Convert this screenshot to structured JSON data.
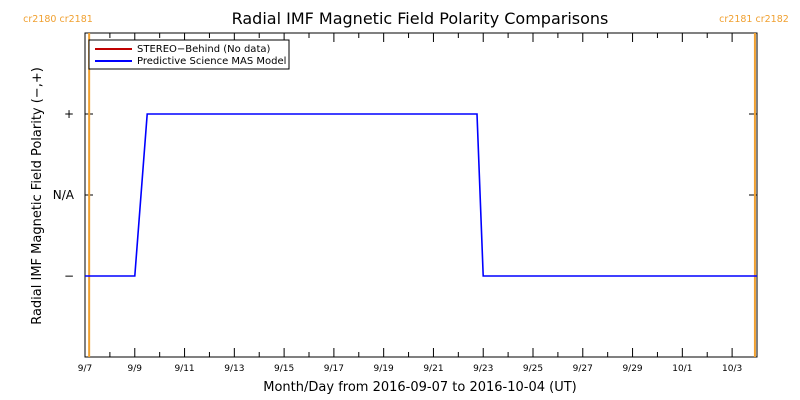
{
  "chart_data": {
    "type": "line",
    "title": "Radial IMF Magnetic Field Polarity Comparisons",
    "xlabel": "Month/Day from 2016-09-07 to 2016-10-04 (UT)",
    "ylabel": "Radial IMF Magnetic Field Polarity (−,+)",
    "x_start": "2016-09-07",
    "x_end": "2016-10-04",
    "x_ticks": [
      {
        "date": "2016-09-07",
        "label": "9/7"
      },
      {
        "date": "2016-09-09",
        "label": "9/9"
      },
      {
        "date": "2016-09-11",
        "label": "9/11"
      },
      {
        "date": "2016-09-13",
        "label": "9/13"
      },
      {
        "date": "2016-09-15",
        "label": "9/15"
      },
      {
        "date": "2016-09-17",
        "label": "9/17"
      },
      {
        "date": "2016-09-19",
        "label": "9/19"
      },
      {
        "date": "2016-09-21",
        "label": "9/21"
      },
      {
        "date": "2016-09-23",
        "label": "9/23"
      },
      {
        "date": "2016-09-25",
        "label": "9/25"
      },
      {
        "date": "2016-09-27",
        "label": "9/27"
      },
      {
        "date": "2016-09-29",
        "label": "9/29"
      },
      {
        "date": "2016-10-01",
        "label": "10/1"
      },
      {
        "date": "2016-10-03",
        "label": "10/3"
      }
    ],
    "y_categories": [
      {
        "value": -1,
        "label": "−"
      },
      {
        "value": 0,
        "label": "N/A"
      },
      {
        "value": 1,
        "label": "+"
      }
    ],
    "ylim": [
      -2,
      2
    ],
    "legend_position": "top-left",
    "series": [
      {
        "name": "STEREO−Behind (No data)",
        "color": "#c00000",
        "points": []
      },
      {
        "name": "Predictive Science MAS Model",
        "color": "#0000ff",
        "points": [
          {
            "x": "2016-09-07 00:00",
            "y": -1
          },
          {
            "x": "2016-09-09 00:00",
            "y": -1
          },
          {
            "x": "2016-09-09 12:00",
            "y": 1
          },
          {
            "x": "2016-09-22 18:00",
            "y": 1
          },
          {
            "x": "2016-09-23 00:00",
            "y": -1
          },
          {
            "x": "2016-10-04 00:00",
            "y": -1
          }
        ]
      }
    ],
    "rotation_markers": [
      {
        "date": "2016-09-07 04:00",
        "labels": [
          "cr2180",
          "cr2181"
        ],
        "color": "#f0a030"
      },
      {
        "date": "2016-10-03 22:00",
        "labels": [
          "cr2181",
          "cr2182"
        ],
        "color": "#f0a030"
      }
    ]
  }
}
